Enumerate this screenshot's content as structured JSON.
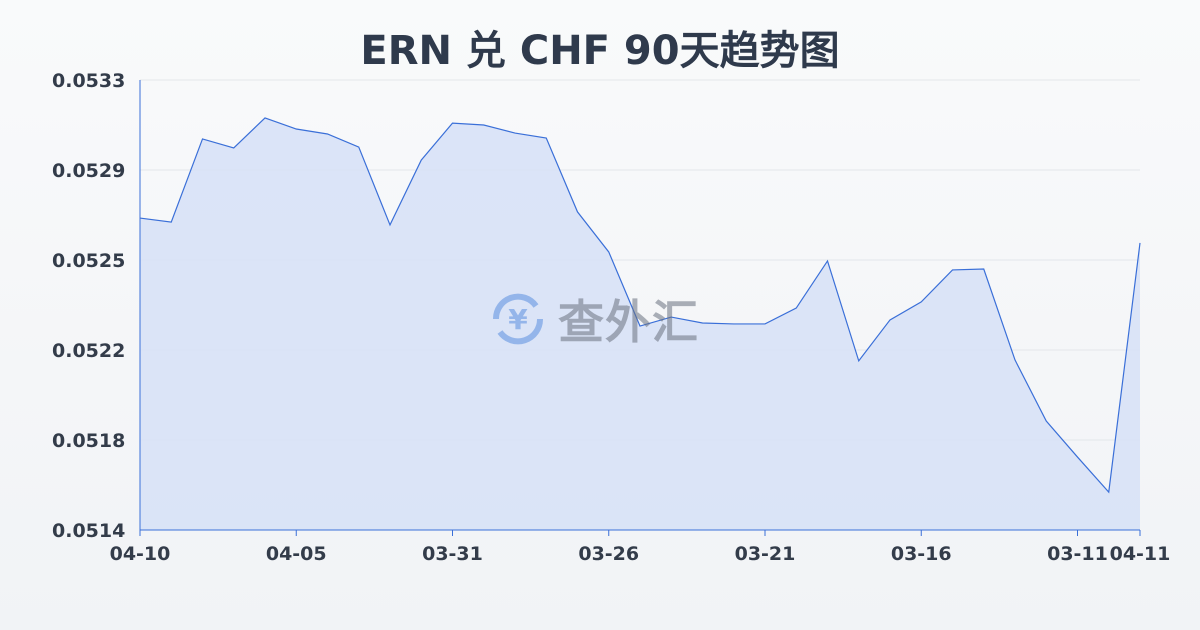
{
  "chart_data": {
    "type": "area",
    "title": "ERN 兑 CHF 90天趋势图",
    "xlabel": "",
    "ylabel": "",
    "ylim": [
      0.0514,
      0.0533
    ],
    "y_ticks": [
      "0.0514",
      "0.0518",
      "0.0522",
      "0.0525",
      "0.0529",
      "0.0533"
    ],
    "x_ticks": [
      {
        "label": "04-10",
        "index": 0
      },
      {
        "label": "04-05",
        "index": 5
      },
      {
        "label": "03-31",
        "index": 10
      },
      {
        "label": "03-26",
        "index": 15
      },
      {
        "label": "03-21",
        "index": 20
      },
      {
        "label": "03-16",
        "index": 25
      },
      {
        "label": "03-11",
        "index": 30
      },
      {
        "label": "04-11",
        "index": 32
      }
    ],
    "grid": true,
    "values": [
      0.052717,
      0.0527,
      0.053051,
      0.053013,
      0.05314,
      0.053093,
      0.053072,
      0.053017,
      0.052688,
      0.052962,
      0.053118,
      0.05311,
      0.053076,
      0.053055,
      0.052743,
      0.052574,
      0.052261,
      0.052299,
      0.052274,
      0.05227,
      0.05227,
      0.052337,
      0.052536,
      0.052114,
      0.052287,
      0.052363,
      0.052498,
      0.052502,
      0.052118,
      0.05186,
      0.051708,
      0.05156,
      0.052612
    ],
    "colors": {
      "line": "#3a6fd8",
      "fill": "#d6e1f7",
      "grid": "#e3e6ea"
    }
  },
  "watermark": {
    "text": "查外汇",
    "icon": "yen-exchange-icon"
  }
}
